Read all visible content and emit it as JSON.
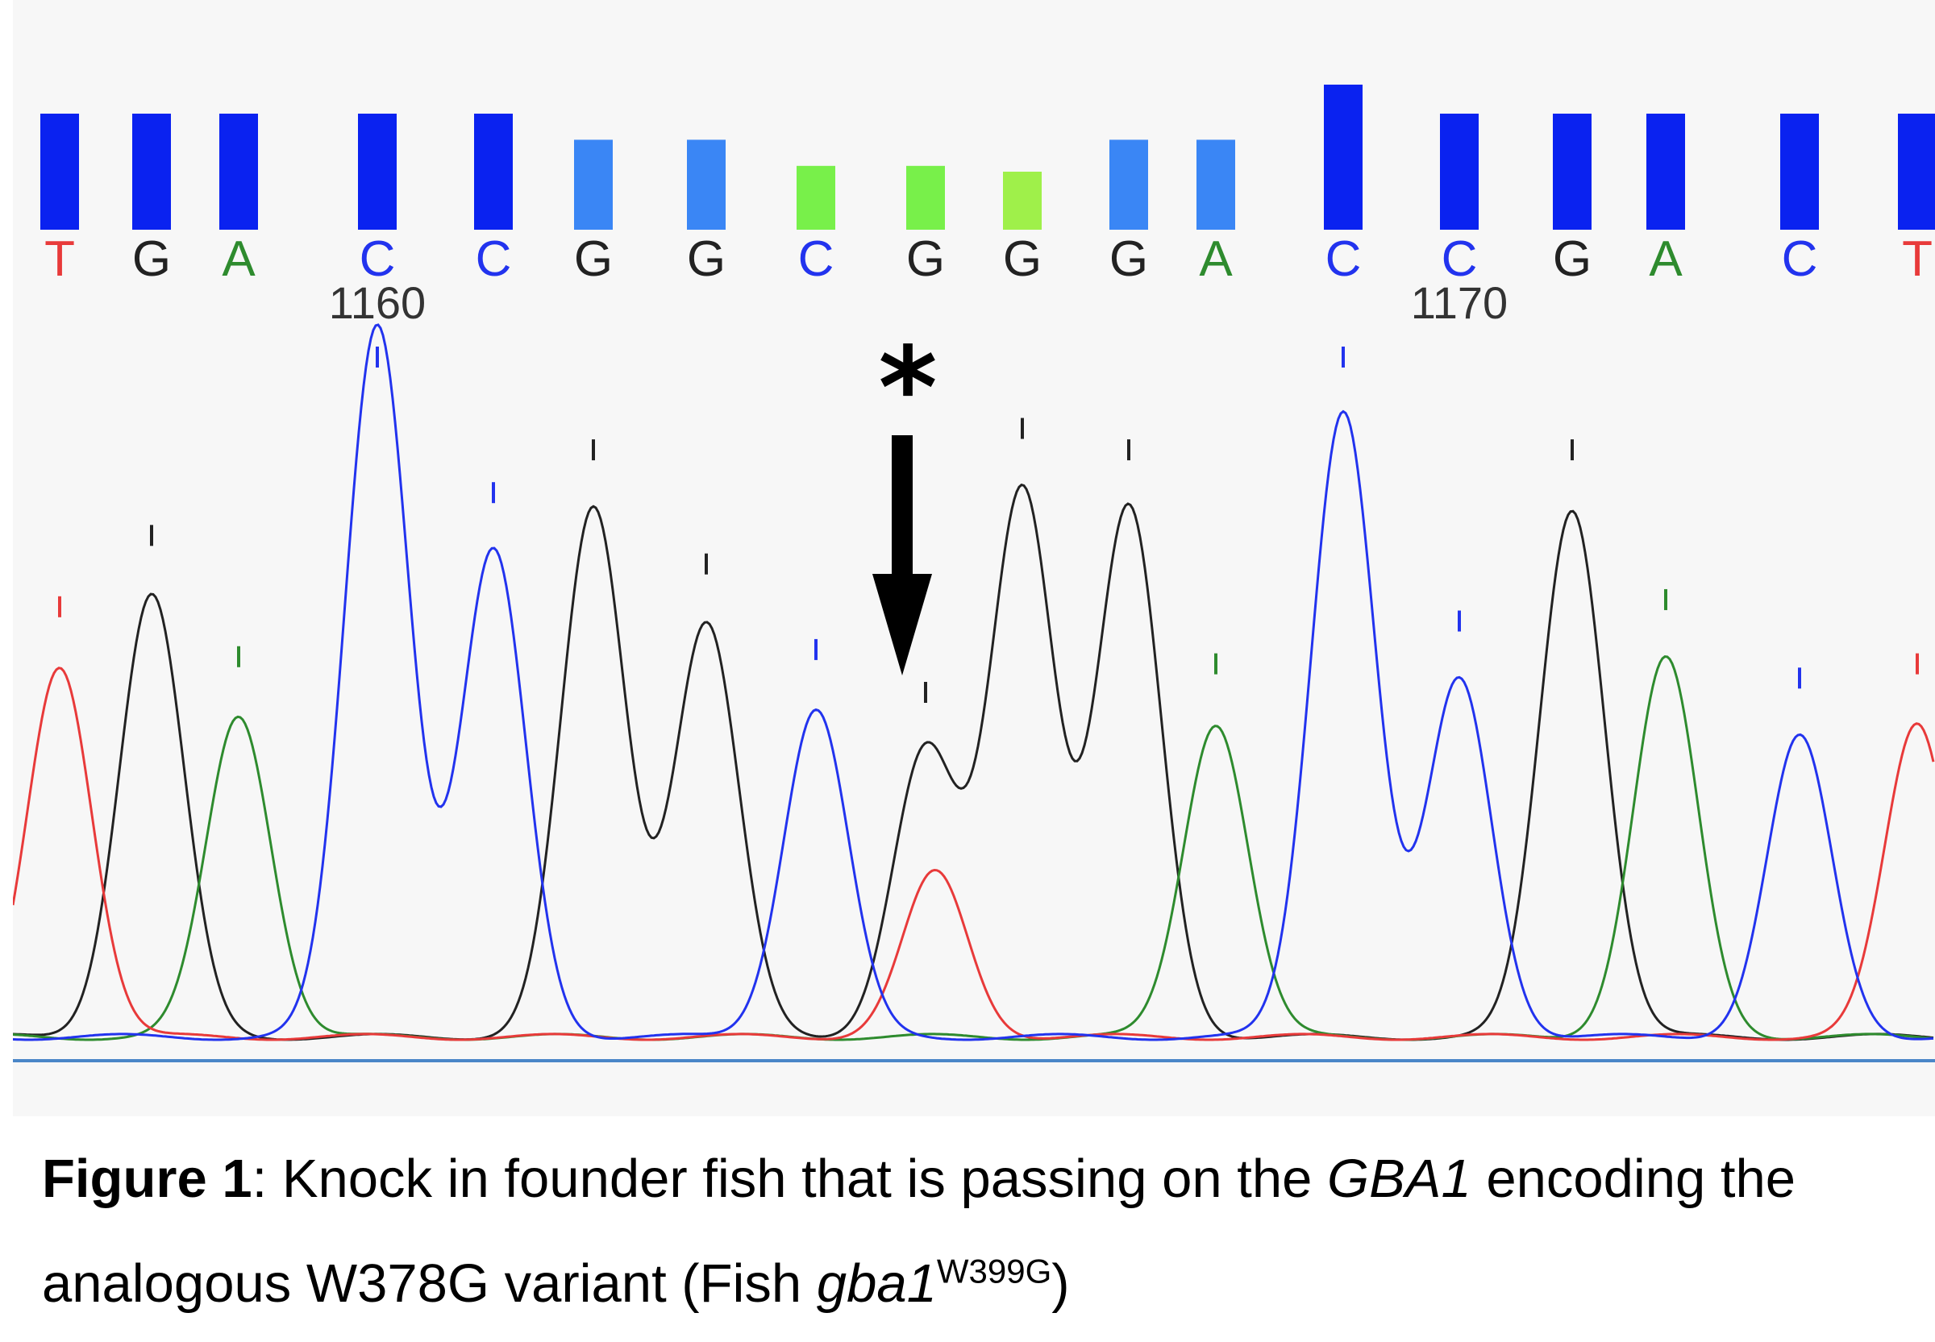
{
  "chart_data": {
    "type": "line",
    "base_calls": [
      "T",
      "G",
      "A",
      "C",
      "C",
      "G",
      "G",
      "C",
      "G",
      "G",
      "G",
      "A",
      "C",
      "C",
      "G",
      "A",
      "C",
      "T"
    ],
    "quality_levels": [
      0.8,
      0.8,
      0.8,
      0.8,
      0.8,
      0.62,
      0.62,
      0.44,
      0.44,
      0.4,
      0.62,
      0.62,
      1.0,
      0.8,
      0.8,
      0.8,
      0.8,
      0.8
    ],
    "position_labels": [
      {
        "value": "1160",
        "base_index": 3
      },
      {
        "value": "1170",
        "base_index": 13
      }
    ],
    "peak_heights_relative": [
      0.52,
      0.62,
      0.45,
      1.0,
      0.68,
      0.74,
      0.58,
      0.46,
      0.4,
      0.77,
      0.74,
      0.44,
      0.88,
      0.5,
      0.74,
      0.53,
      0.42,
      0.44
    ],
    "secondary_peak": {
      "base_index": 8,
      "channel": "T",
      "height_relative": 0.23
    },
    "annotation": {
      "symbol": "*",
      "base_index": 8
    },
    "channel_colors": {
      "A": "#2e8b2e",
      "C": "#2233ee",
      "G": "#222222",
      "T": "#e83a3a"
    },
    "quality_colors": {
      "high": "#0a22f0",
      "medium": "#3a86f5",
      "low": "#78f04a",
      "lowest": "#9ff04a"
    }
  },
  "caption": {
    "label": "Figure 1",
    "text_1": ": Knock in founder fish that is passing on the ",
    "gene_italic": "GBA1",
    "text_2": " encoding the analogous W378G variant (Fish ",
    "fish_gene_italic": "gba1",
    "superscript": "W399G",
    "text_3": ")"
  }
}
